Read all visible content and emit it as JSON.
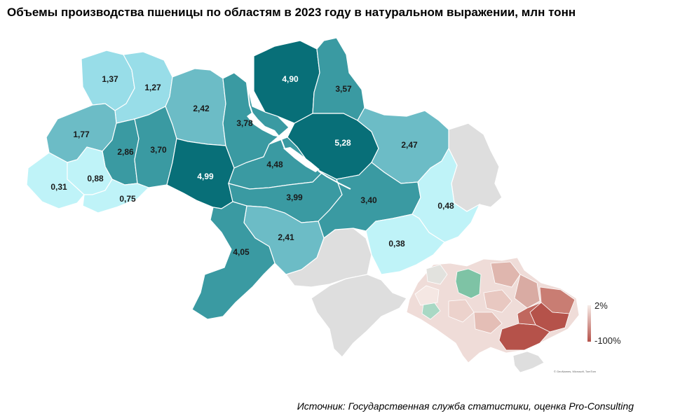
{
  "title": "Объемы производства пшеницы по областям в 2023 году в натуральном выражении, млн тонн",
  "source": "Источник: Государственная служба статистики, оценка Pro-Consulting",
  "colors": {
    "c1": "#bff3f8",
    "c2": "#98dde8",
    "c3": "#6cbcc6",
    "c4": "#3a9aa2",
    "c5": "#086f78",
    "occupied": "#dedede",
    "water": "#ffffff"
  },
  "regions": [
    {
      "name": "Волынская",
      "value": "1,37"
    },
    {
      "name": "Ровенская",
      "value": "1,27"
    },
    {
      "name": "Житомирская",
      "value": "2,42"
    },
    {
      "name": "Киевская",
      "value": "3,78"
    },
    {
      "name": "Черниговская",
      "value": "4,90"
    },
    {
      "name": "Сумская",
      "value": "3,57"
    },
    {
      "name": "Львовская",
      "value": "1,77"
    },
    {
      "name": "Тернопольская",
      "value": "2,86"
    },
    {
      "name": "Хмельницкая",
      "value": "3,70"
    },
    {
      "name": "Полтавская",
      "value": "5,28"
    },
    {
      "name": "Харьковская",
      "value": "2,47"
    },
    {
      "name": "Закарпатская",
      "value": "0,31"
    },
    {
      "name": "Ивано-Франковская",
      "value": "0,88"
    },
    {
      "name": "Черновицкая",
      "value": "0,75"
    },
    {
      "name": "Винницкая",
      "value": "4,99"
    },
    {
      "name": "Черкасская",
      "value": "4,48"
    },
    {
      "name": "Кировоградская",
      "value": "3,99"
    },
    {
      "name": "Днепропетровская",
      "value": "3,40"
    },
    {
      "name": "Луганская",
      "value": "0,48"
    },
    {
      "name": "Донецкая",
      "value": "0,38"
    },
    {
      "name": "Николаевская",
      "value": "2,41"
    },
    {
      "name": "Одесская",
      "value": "4,05"
    }
  ],
  "inset_legend": {
    "max_label": "2%",
    "min_label": "-100%",
    "high_color": "#f7ece8",
    "low_color": "#b5524a"
  },
  "inset_credit": [
    "© GeoNames, Microsoft, TomTom"
  ]
}
